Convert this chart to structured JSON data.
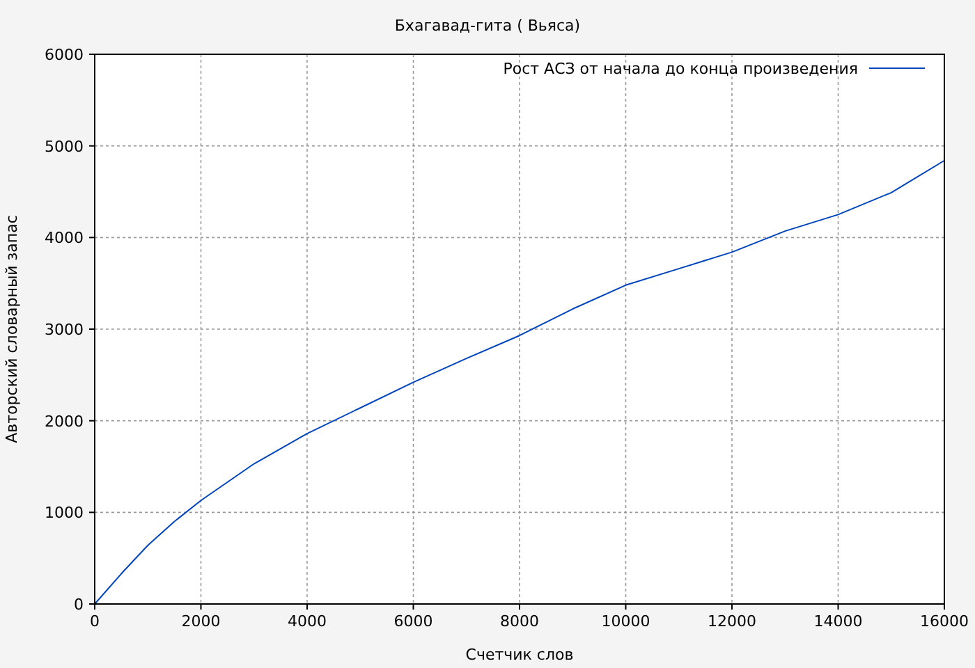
{
  "chart_data": {
    "type": "line",
    "title": "Бхагавад-гита ( Вьяса)",
    "xlabel": "Счетчик слов",
    "ylabel": "Авторский словарный запас",
    "x": [
      0,
      500,
      1000,
      1500,
      2000,
      3000,
      4000,
      5000,
      6000,
      7000,
      8000,
      9000,
      10000,
      11000,
      12000,
      13000,
      14000,
      15000,
      16000
    ],
    "series": [
      {
        "name": "Рост АСЗ от начала до конца произведения",
        "color": "#0044bb",
        "values": [
          0,
          330,
          640,
          900,
          1130,
          1530,
          1860,
          2140,
          2420,
          2680,
          2930,
          3220,
          3480,
          3660,
          3840,
          4070,
          4250,
          4490,
          4840
        ]
      }
    ],
    "xlim": [
      0,
      16000
    ],
    "ylim": [
      0,
      6000
    ],
    "xticks": [
      0,
      2000,
      4000,
      6000,
      8000,
      10000,
      12000,
      14000,
      16000
    ],
    "yticks": [
      0,
      1000,
      2000,
      3000,
      4000,
      5000,
      6000
    ],
    "grid": true,
    "legend": "top right",
    "marker": "none",
    "line_style": "solid"
  }
}
